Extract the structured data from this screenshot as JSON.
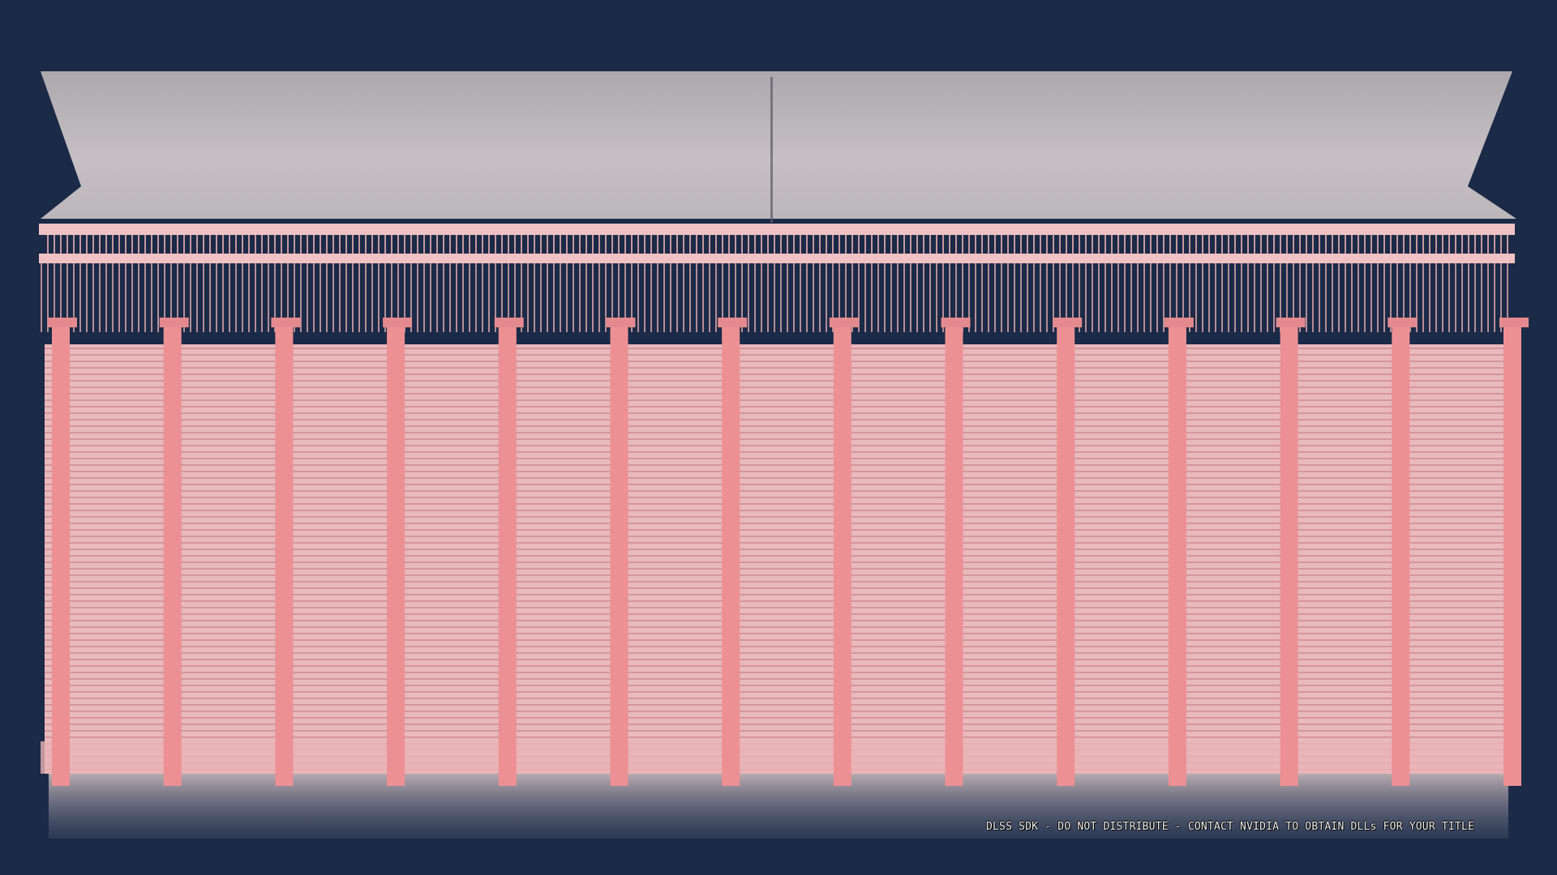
{
  "scene": {
    "background_color": "#1b2a47",
    "fog_color": "#c8c0c0",
    "structure_color": "#f2a8ab",
    "pillar_color": "#ec9094"
  },
  "overlay": {
    "watermark": "DLSS SDK - DO NOT DISTRIBUTE - CONTACT NVIDIA TO OBTAIN DLLs FOR YOUR TITLE"
  }
}
